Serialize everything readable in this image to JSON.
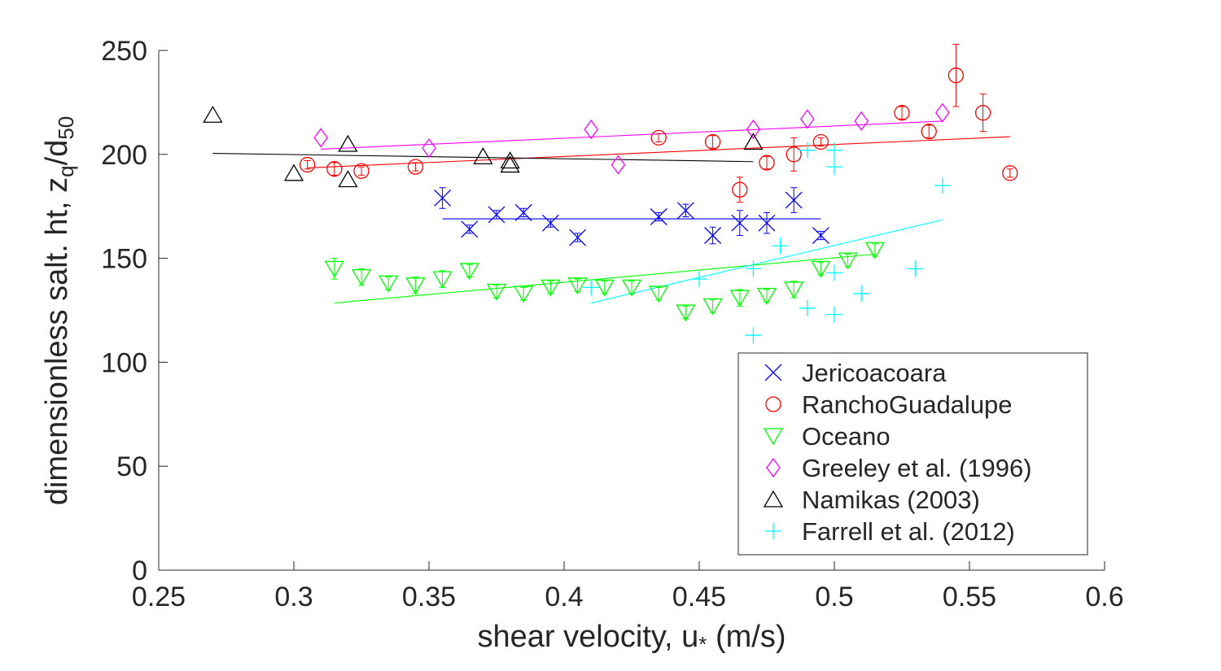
{
  "chart_data": {
    "type": "scatter",
    "title": "",
    "xlabel": "shear velocity, u",
    "xlabel_sub": "*",
    "xlabel_unit": " (m/s)",
    "ylabel": "dimensionless salt. ht, z",
    "ylabel_sub1": "q",
    "ylabel_mid": "/d",
    "ylabel_sub2": "50",
    "xlim": [
      0.25,
      0.6
    ],
    "ylim": [
      0,
      250
    ],
    "xticks": [
      0.25,
      0.3,
      0.35,
      0.4,
      0.45,
      0.5,
      0.55,
      0.6
    ],
    "xtick_labels": [
      "0.25",
      "0.3",
      "0.35",
      "0.4",
      "0.45",
      "0.5",
      "0.55",
      "0.6"
    ],
    "yticks": [
      0,
      50,
      100,
      150,
      200,
      250
    ],
    "ytick_labels": [
      "0",
      "50",
      "100",
      "150",
      "200",
      "250"
    ],
    "grid": false,
    "legend_position": "lower-right",
    "series": [
      {
        "name": "Jericoacoara",
        "marker": "x",
        "color": "#0000ff",
        "points": [
          [
            0.355,
            179,
            5
          ],
          [
            0.365,
            164,
            2
          ],
          [
            0.375,
            171,
            2
          ],
          [
            0.385,
            172,
            2
          ],
          [
            0.395,
            167,
            2
          ],
          [
            0.405,
            160,
            2
          ],
          [
            0.435,
            170,
            2
          ],
          [
            0.445,
            173,
            3
          ],
          [
            0.455,
            161,
            4
          ],
          [
            0.465,
            167,
            6
          ],
          [
            0.475,
            167,
            5
          ],
          [
            0.485,
            178,
            6
          ],
          [
            0.495,
            161,
            2
          ]
        ],
        "fit": [
          [
            0.355,
            169
          ],
          [
            0.495,
            169
          ]
        ]
      },
      {
        "name": "RanchoGuadalupe",
        "marker": "circle",
        "color": "#ff0000",
        "points": [
          [
            0.305,
            195,
            2
          ],
          [
            0.315,
            193,
            3
          ],
          [
            0.325,
            192,
            2
          ],
          [
            0.345,
            194,
            2
          ],
          [
            0.435,
            208,
            2
          ],
          [
            0.455,
            206,
            3
          ],
          [
            0.465,
            183,
            6
          ],
          [
            0.475,
            196,
            3
          ],
          [
            0.485,
            200,
            8
          ],
          [
            0.495,
            206,
            2
          ],
          [
            0.525,
            220,
            3
          ],
          [
            0.535,
            211,
            3
          ],
          [
            0.545,
            238,
            15
          ],
          [
            0.555,
            220,
            9
          ],
          [
            0.565,
            191,
            2
          ]
        ],
        "fit": [
          [
            0.305,
            193.5
          ],
          [
            0.565,
            208.5
          ]
        ]
      },
      {
        "name": "Oceano",
        "marker": "triangle-down",
        "color": "#00ff00",
        "points": [
          [
            0.315,
            145,
            5
          ],
          [
            0.325,
            141,
            4
          ],
          [
            0.335,
            138,
            3
          ],
          [
            0.345,
            137,
            4
          ],
          [
            0.355,
            140,
            4
          ],
          [
            0.365,
            144,
            3
          ],
          [
            0.375,
            134,
            3
          ],
          [
            0.385,
            133,
            3
          ],
          [
            0.395,
            136,
            3
          ],
          [
            0.405,
            137,
            3
          ],
          [
            0.415,
            136,
            3
          ],
          [
            0.425,
            136,
            3
          ],
          [
            0.435,
            133,
            3
          ],
          [
            0.445,
            124,
            3
          ],
          [
            0.455,
            127,
            3
          ],
          [
            0.465,
            131,
            4
          ],
          [
            0.475,
            132,
            3
          ],
          [
            0.485,
            135,
            4
          ],
          [
            0.495,
            145,
            3
          ],
          [
            0.505,
            149,
            3
          ],
          [
            0.515,
            154,
            3
          ]
        ],
        "fit": [
          [
            0.315,
            128.5
          ],
          [
            0.515,
            152
          ]
        ]
      },
      {
        "name": "Greeley et al. (1996)",
        "marker": "diamond",
        "color": "#ff00ff",
        "points": [
          [
            0.31,
            208
          ],
          [
            0.35,
            203
          ],
          [
            0.41,
            212
          ],
          [
            0.42,
            195
          ],
          [
            0.47,
            212
          ],
          [
            0.49,
            217
          ],
          [
            0.51,
            216
          ],
          [
            0.54,
            220
          ]
        ],
        "fit": [
          [
            0.31,
            202.5
          ],
          [
            0.54,
            216
          ]
        ]
      },
      {
        "name": "Namikas (2003)",
        "marker": "triangle-up",
        "color": "#000000",
        "points": [
          [
            0.27,
            219
          ],
          [
            0.3,
            191
          ],
          [
            0.32,
            205
          ],
          [
            0.32,
            188
          ],
          [
            0.37,
            199
          ],
          [
            0.38,
            197
          ],
          [
            0.38,
            195
          ],
          [
            0.47,
            206
          ]
        ],
        "fit": [
          [
            0.27,
            200.5
          ],
          [
            0.47,
            196.5
          ]
        ]
      },
      {
        "name": "Farrell et al. (2012)",
        "marker": "plus",
        "color": "#00ffff",
        "points": [
          [
            0.41,
            136
          ],
          [
            0.45,
            140
          ],
          [
            0.47,
            113
          ],
          [
            0.47,
            145
          ],
          [
            0.48,
            156
          ],
          [
            0.49,
            126
          ],
          [
            0.49,
            202
          ],
          [
            0.5,
            123
          ],
          [
            0.5,
            143
          ],
          [
            0.5,
            194
          ],
          [
            0.5,
            202
          ],
          [
            0.51,
            133
          ],
          [
            0.53,
            145
          ],
          [
            0.54,
            185
          ]
        ],
        "fit": [
          [
            0.41,
            128.5
          ],
          [
            0.54,
            168.5
          ]
        ]
      }
    ]
  }
}
